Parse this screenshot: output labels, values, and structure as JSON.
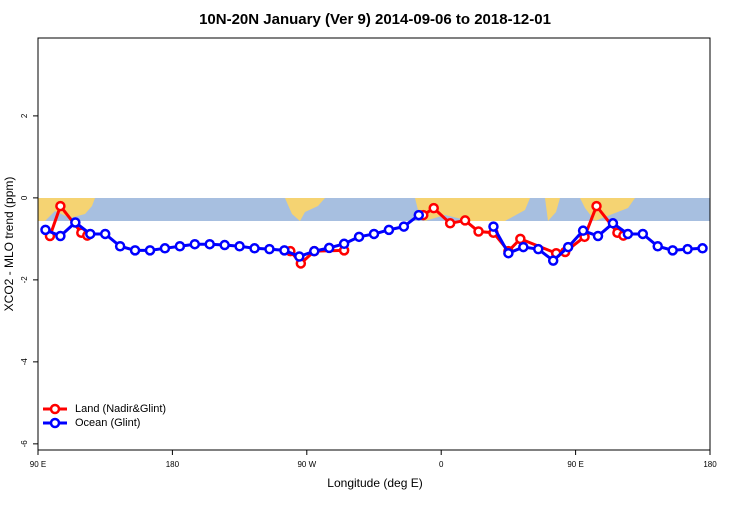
{
  "chart_data": {
    "type": "line",
    "title": "10N-20N January (Ver 9)   2014-09-06 to 2018-12-01",
    "x_label": "Longitude (deg E)",
    "y_label": "XCO2 - MLO trend (ppm)",
    "xlim": [
      90,
      540
    ],
    "ylim": [
      -6.15,
      3.9
    ],
    "xticks": [
      {
        "value": 90,
        "label": "90 E"
      },
      180,
      {
        "value": 270,
        "label": "90 W"
      },
      {
        "value": 360,
        "label": "0"
      },
      {
        "value": 450,
        "label": "90 E"
      },
      {
        "value": 540,
        "label": "180"
      }
    ],
    "yticks": [
      2,
      0,
      -2,
      -4,
      -6
    ],
    "legend": "bottomleft",
    "series": [
      {
        "name": "Land (Nadir&Glint)",
        "color": "#ff0000",
        "x": [
          98,
          105,
          119,
          123,
          190,
          259,
          266,
          275,
          295,
          320,
          348,
          355,
          366,
          376,
          385,
          395,
          405,
          413,
          437,
          443,
          456,
          464,
          478,
          482
        ],
        "values": [
          -0.93,
          -0.2,
          -0.85,
          -0.92,
          null,
          -1.3,
          -1.6,
          -1.3,
          -1.28,
          null,
          -0.42,
          -0.25,
          -0.62,
          -0.55,
          -0.82,
          -0.85,
          -1.3,
          -1.0,
          -1.35,
          -1.32,
          -0.95,
          -0.2,
          -0.85,
          -0.92
        ]
      },
      {
        "name": "Ocean (Glint)",
        "color": "#0000ff",
        "x": [
          95,
          105,
          115,
          125,
          135,
          145,
          155,
          165,
          175,
          185,
          195,
          205,
          215,
          225,
          235,
          245,
          255,
          265,
          275,
          285,
          295,
          305,
          315,
          325,
          335,
          345,
          370,
          395,
          405,
          415,
          425,
          435,
          445,
          455,
          465,
          475,
          485,
          495,
          505,
          515,
          525,
          535
        ],
        "values": [
          -0.78,
          -0.93,
          -0.6,
          -0.88,
          -0.88,
          -1.18,
          -1.28,
          -1.28,
          -1.23,
          -1.18,
          -1.13,
          -1.13,
          -1.15,
          -1.18,
          -1.23,
          -1.25,
          -1.28,
          -1.43,
          -1.3,
          -1.22,
          -1.12,
          -0.95,
          -0.88,
          -0.78,
          -0.7,
          -0.42,
          null,
          -0.7,
          -1.35,
          -1.2,
          -1.25,
          -1.53,
          -1.2,
          -0.8,
          -0.93,
          -0.62,
          -0.88,
          -0.88,
          -1.18,
          -1.28,
          -1.25,
          -1.23
        ]
      }
    ]
  }
}
